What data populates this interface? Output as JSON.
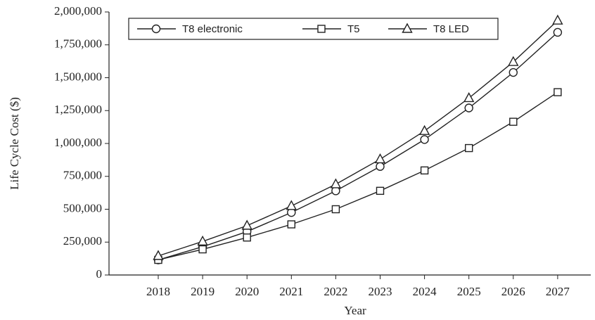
{
  "chart_data": {
    "type": "line",
    "y_label": "Life Cycle Cost ($)",
    "x_label": "Year",
    "categories": [
      "2018",
      "2019",
      "2020",
      "2021",
      "2022",
      "2023",
      "2024",
      "2025",
      "2026",
      "2027"
    ],
    "series": [
      {
        "name": "T8 electronic",
        "color": "#222222",
        "marker": "circle",
        "values": [
          115000,
          215000,
          330000,
          475000,
          640000,
          825000,
          1030000,
          1270000,
          1540000,
          1845000
        ]
      },
      {
        "name": "T5",
        "color": "#222222",
        "marker": "square",
        "values": [
          115000,
          195000,
          285000,
          385000,
          500000,
          640000,
          795000,
          965000,
          1165000,
          1390000
        ]
      },
      {
        "name": "T8 LED",
        "color": "#222222",
        "marker": "triangle",
        "values": [
          145000,
          255000,
          375000,
          525000,
          690000,
          880000,
          1095000,
          1345000,
          1620000,
          1935000
        ]
      }
    ],
    "ylim": [
      0,
      2000000
    ],
    "yticks": [
      0,
      {
        "value": 250000,
        "label": "250,000"
      },
      {
        "value": 500000,
        "label": "500,000"
      },
      {
        "value": 750000,
        "label": "750,000"
      },
      {
        "value": 1000000,
        "label": "1,000,000"
      },
      {
        "value": 1250000,
        "label": "1,250,000"
      },
      {
        "value": 1500000,
        "label": "1,500,000"
      },
      {
        "value": 1750000,
        "label": "1,750,000"
      },
      {
        "value": 2000000,
        "label": "2,000,000"
      }
    ],
    "legend": "upper left"
  }
}
